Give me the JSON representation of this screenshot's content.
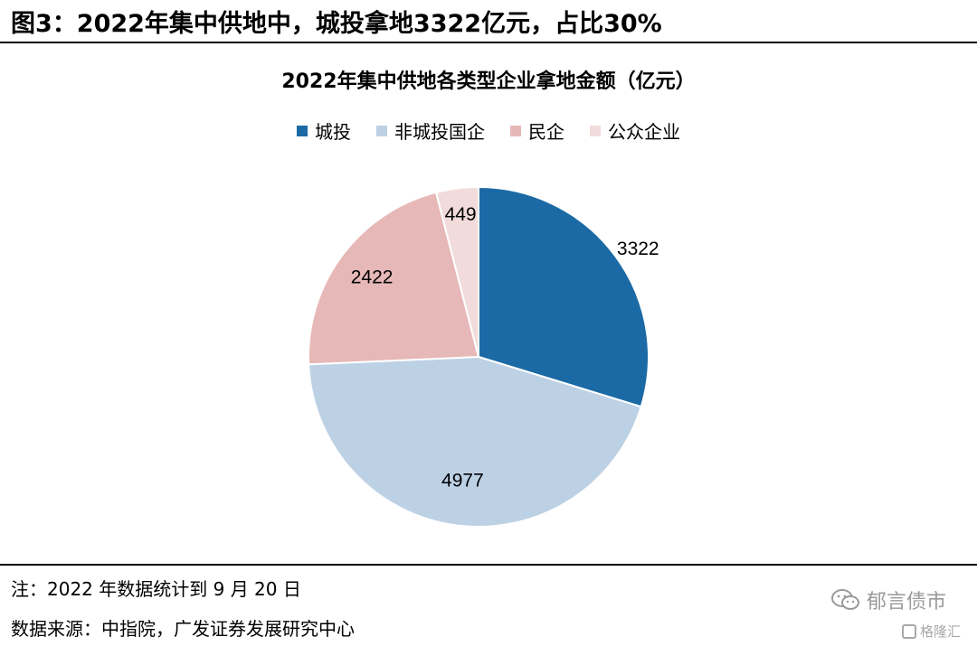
{
  "figure": {
    "title": "图3：2022年集中供地中，城投拿地3322亿元，占比30%",
    "note": "注：2022 年数据统计到 9 月 20 日",
    "source": "数据来源：中指院，广发证券发展研究中心",
    "watermark": "郁言债市",
    "watermark2": "格隆汇"
  },
  "chart_data": {
    "type": "pie",
    "title": "2022年集中供地各类型企业拿地金额（亿元）",
    "legend_position": "top",
    "categories": [
      "城投",
      "非城投国企",
      "民企",
      "公众企业"
    ],
    "values": [
      3322,
      4977,
      2422,
      449
    ],
    "colors": [
      "#1b6aa5",
      "#bdd1e5",
      "#e6b8b7",
      "#f2dcdb"
    ],
    "labels": [
      "3322",
      "4977",
      "2422",
      "449"
    ]
  }
}
